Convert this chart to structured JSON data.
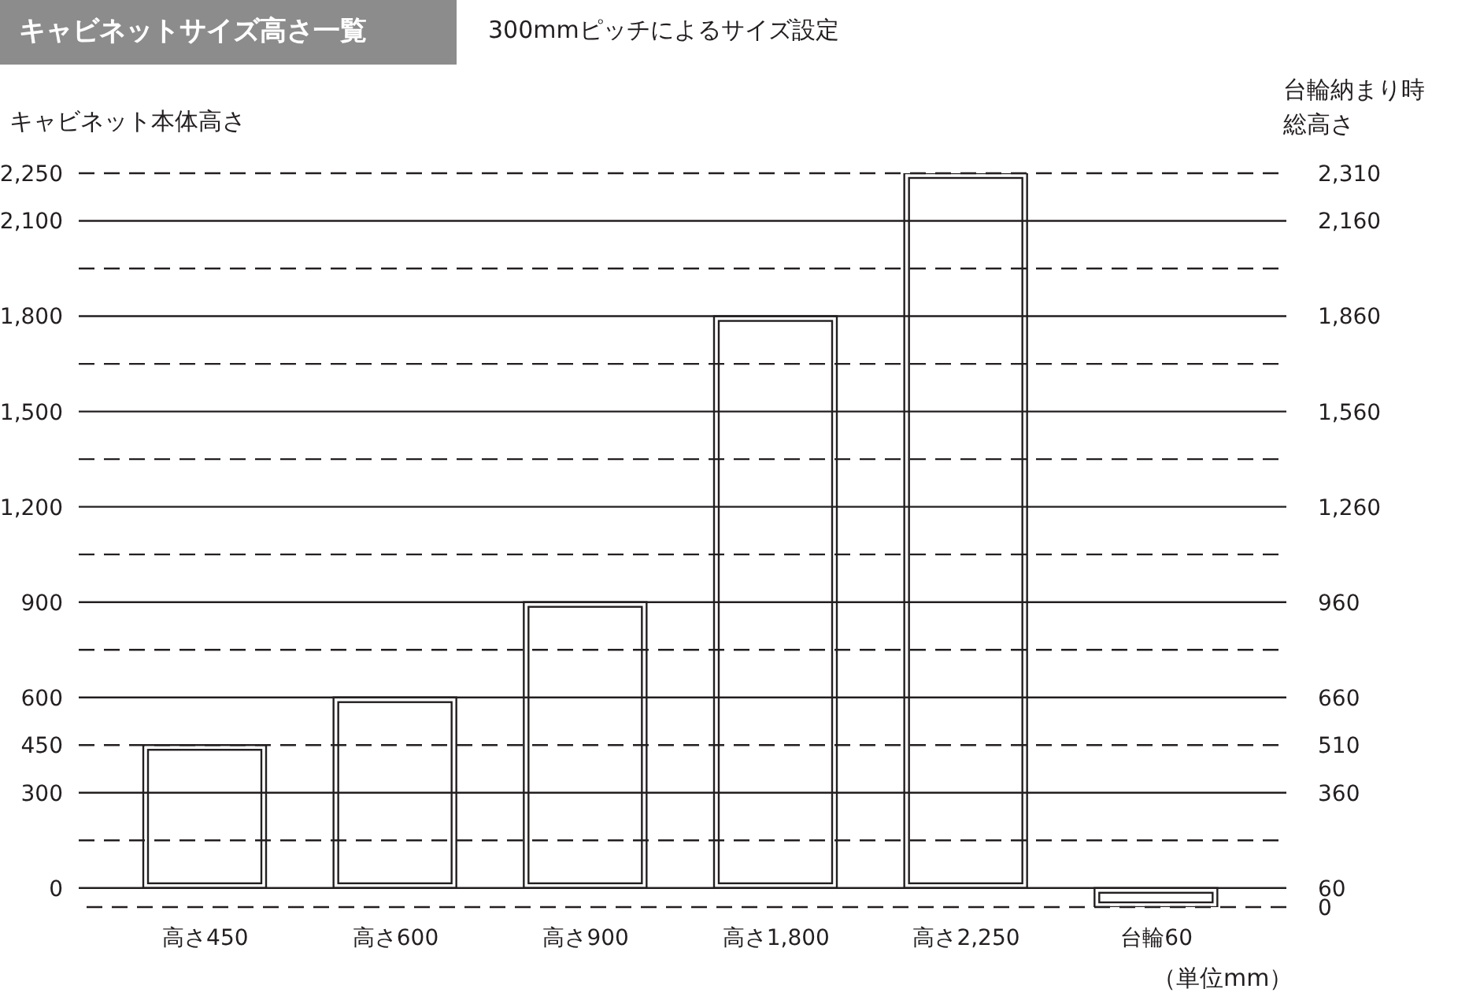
{
  "chart_data": {
    "type": "bar",
    "title": "キャビネットサイズ高さ一覧",
    "subtitle": "300mmピッチによるサイズ設定",
    "ylabel": "キャビネット本体高さ",
    "y2label": "台輪納まり時総高さ",
    "categories": [
      "高さ450",
      "高さ600",
      "高さ900",
      "高さ1,800",
      "高さ2,250",
      "台輪60"
    ],
    "values": [
      450,
      600,
      900,
      1800,
      2250,
      60
    ],
    "base": [
      0,
      0,
      0,
      0,
      0,
      -60
    ],
    "color": "#ffffff",
    "ylim": [
      -60,
      2250
    ],
    "yticks": [
      0,
      300,
      450,
      600,
      900,
      {
        "value": 1200,
        "label": "1,200"
      },
      {
        "value": 1500,
        "label": "1,500"
      },
      {
        "value": 1800,
        "label": "1,800"
      },
      {
        "value": 2100,
        "label": "2,100"
      },
      {
        "value": 2250,
        "label": "2,250"
      }
    ],
    "y2lim": [
      0,
      2310
    ],
    "y2ticks": [
      0,
      60,
      360,
      510,
      660,
      960,
      {
        "value": 1260,
        "label": "1,260"
      },
      {
        "value": 1560,
        "label": "1,560"
      },
      {
        "value": 1860,
        "label": "1,860"
      },
      {
        "value": 2160,
        "label": "2,160"
      },
      {
        "value": 2310,
        "label": "2,310"
      }
    ],
    "grid": "y",
    "ref_lines": [
      {
        "axis": "y",
        "value": 2250,
        "line_style": "dashed"
      },
      {
        "axis": "y",
        "value": 1950,
        "line_style": "dashed"
      },
      {
        "axis": "y",
        "value": 1650,
        "line_style": "dashed"
      },
      {
        "axis": "y",
        "value": 1350,
        "line_style": "dashed"
      },
      {
        "axis": "y",
        "value": 1050,
        "line_style": "dashed"
      },
      {
        "axis": "y",
        "value": 750,
        "line_style": "dashed"
      },
      {
        "axis": "y",
        "value": 450,
        "line_style": "dashed"
      },
      {
        "axis": "y",
        "value": 150,
        "line_style": "dashed"
      },
      {
        "axis": "y2",
        "value": 0,
        "line_style": "dashed"
      }
    ],
    "annotations": [
      "（単位mm）"
    ]
  }
}
